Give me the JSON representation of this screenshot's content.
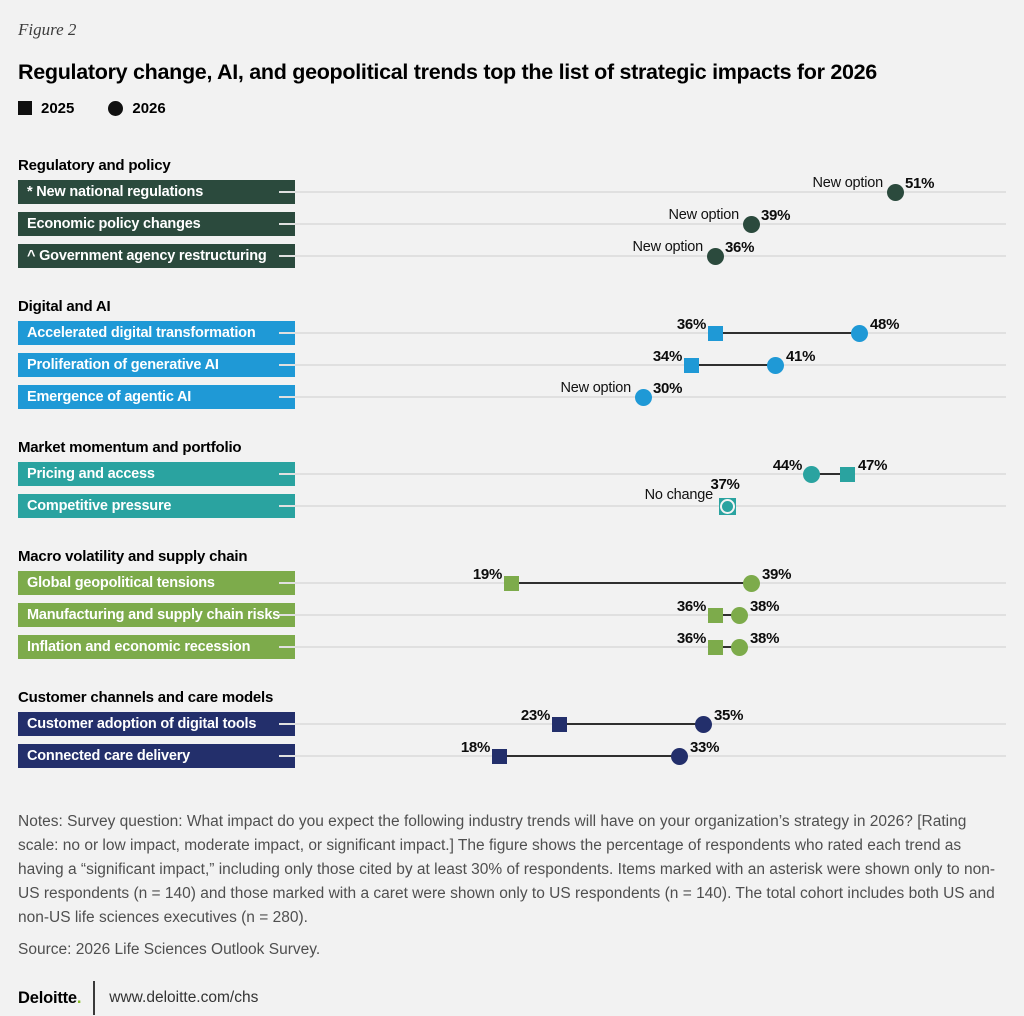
{
  "figure_label": "Figure 2",
  "title": "Regulatory change, AI, and geopolitical trends top the list of strategic impacts for 2026",
  "legend": {
    "square_label": "2025",
    "circle_label": "2026"
  },
  "chart_data": {
    "type": "dumbbell",
    "unit": "%",
    "marker_key": {
      "square": "2025",
      "circle": "2026"
    },
    "axis": {
      "value_min": 0,
      "value_max": 60,
      "gridlines": "one horizontal track per row"
    },
    "annotation_labels": {
      "new_option": "New option",
      "no_change": "No change"
    },
    "groups": [
      {
        "name": "Regulatory and policy",
        "color": "#2b4a3d",
        "items": [
          {
            "label": "* New national regulations",
            "v2025": null,
            "v2026": 51,
            "note": "New option"
          },
          {
            "label": "Economic policy changes",
            "v2025": null,
            "v2026": 39,
            "note": "New option"
          },
          {
            "label": "^ Government agency restructuring",
            "v2025": null,
            "v2026": 36,
            "note": "New option"
          }
        ]
      },
      {
        "name": "Digital and AI",
        "color": "#1f99d6",
        "items": [
          {
            "label": "Accelerated digital transformation",
            "v2025": 36,
            "v2026": 48,
            "note": null
          },
          {
            "label": "Proliferation of generative AI",
            "v2025": 34,
            "v2026": 41,
            "note": null
          },
          {
            "label": "Emergence of agentic AI",
            "v2025": null,
            "v2026": 30,
            "note": "New option"
          }
        ]
      },
      {
        "name": "Market momentum and portfolio",
        "color": "#2aa3a0",
        "items": [
          {
            "label": "Pricing and access",
            "v2025": 47,
            "v2026": 44,
            "note": null
          },
          {
            "label": "Competitive pressure",
            "v2025": 37,
            "v2026": 37,
            "note": "No change"
          }
        ]
      },
      {
        "name": "Macro volatility and supply chain",
        "color": "#7dab4b",
        "items": [
          {
            "label": "Global geopolitical tensions",
            "v2025": 19,
            "v2026": 39,
            "note": null
          },
          {
            "label": "Manufacturing and supply chain risks",
            "v2025": 36,
            "v2026": 38,
            "note": null
          },
          {
            "label": "Inflation and economic recession",
            "v2025": 36,
            "v2026": 38,
            "note": null
          }
        ]
      },
      {
        "name": "Customer channels and care models",
        "color": "#232f6b",
        "items": [
          {
            "label": "Customer adoption of digital tools",
            "v2025": 23,
            "v2026": 35,
            "note": null
          },
          {
            "label": "Connected care delivery",
            "v2025": 18,
            "v2026": 33,
            "note": null
          }
        ]
      }
    ]
  },
  "notes": "Notes: Survey question: What impact do you expect the following industry trends will have on your organization’s strategy in 2026? [Rating scale: no or low impact, moderate impact, or significant impact.] The figure shows the percentage of respondents who rated each trend as having a “significant impact,” including only those cited by at least 30% of respondents. Items marked with an asterisk were shown only to non-US respondents (n = 140) and those marked with a caret were shown only to US respondents (n = 140). The total cohort includes both US and non-US life sciences executives (n = 280).",
  "source": "Source: 2026 Life Sciences Outlook Survey.",
  "footer": {
    "brand": "Deloitte",
    "brand_dot": ".",
    "url": "www.deloitte.com/chs"
  }
}
